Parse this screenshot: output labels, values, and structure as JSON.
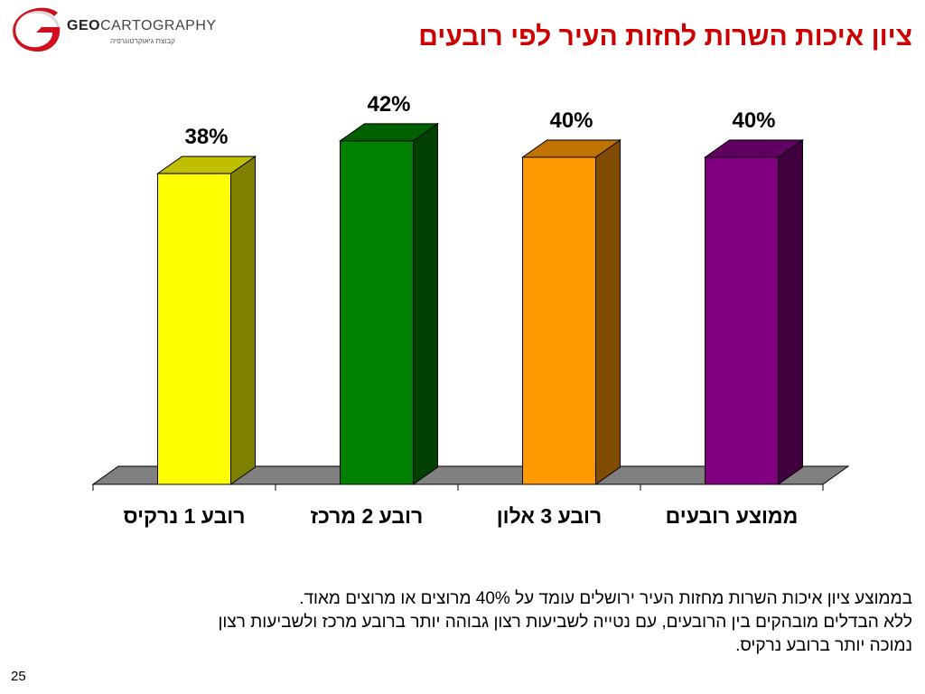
{
  "header": {
    "logo_brand_bold": "GEO",
    "logo_brand_light": "CARTOGRAPHY",
    "logo_subtitle": "קבוצת גיאוקרטוגרפיה",
    "title": "ציון איכות השרות לחזות העיר לפי רובעים"
  },
  "chart_data": {
    "type": "bar",
    "style": "3d",
    "categories": [
      "רובע 1 נרקיס",
      "רובע 2 מרכז",
      "רובע 3 אלון",
      "ממוצע רובעים"
    ],
    "values": [
      38,
      42,
      40,
      40
    ],
    "data_labels": [
      "38%",
      "42%",
      "40%",
      "40%"
    ],
    "colors": {
      "front": [
        "#ffff00",
        "#008000",
        "#ff9900",
        "#800080"
      ],
      "side": [
        "#808000",
        "#004000",
        "#804c00",
        "#400040"
      ],
      "top": [
        "#bfbf00",
        "#006000",
        "#bf7300",
        "#600060"
      ],
      "floor": "#808080"
    },
    "ylim": [
      0,
      45
    ],
    "grid": false,
    "legend": "none",
    "title": "",
    "xlabel": "",
    "ylabel": ""
  },
  "caption": {
    "lines": [
      "בממוצע ציון איכות השרות מחזות העיר ירושלים עומד על 40% מרוצים או מרוצים מאוד.",
      "ללא הבדלים מובהקים בין הרובעים, עם נטייה לשביעות רצון גבוהה יותר ברובע מרכז ולשביעות רצון",
      "נמוכה יותר ברובע נרקיס."
    ]
  },
  "page_number": "25"
}
